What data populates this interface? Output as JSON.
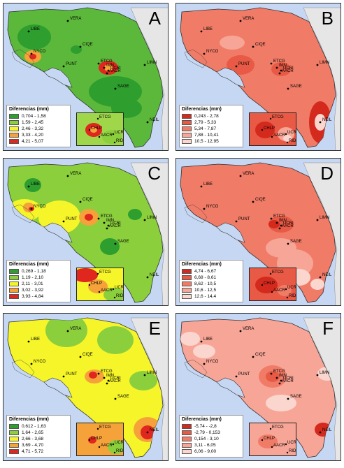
{
  "legend_title": "Diferencias (mm)",
  "stations": {
    "main": [
      "VERA",
      "LIBE",
      "CIQE",
      "NYCO",
      "PUNT",
      "ETCG",
      "UCRI",
      "IMN",
      "AACR",
      "LIMN",
      "SAGE",
      "NEIL"
    ],
    "inset": [
      "ETCG",
      "CHLP",
      "AACR",
      "UCRI",
      "RIDC"
    ]
  },
  "colors": {
    "land_base": "#f0f0f0",
    "water": "#c5d7f2"
  },
  "panels": [
    {
      "letter": "A",
      "legend": [
        {
          "label": "0,704 - 1,58",
          "color": "#2e9e2e"
        },
        {
          "label": "1,59 - 2,45",
          "color": "#8ccf3d"
        },
        {
          "label": "2,46 - 3,32",
          "color": "#f5f52a"
        },
        {
          "label": "3,33 - 4,20",
          "color": "#f5a23a"
        },
        {
          "label": "4,21 - 5,07",
          "color": "#e0261e"
        }
      ],
      "base_color": "#5cb83a",
      "inset_base": "#9fd64a"
    },
    {
      "letter": "B",
      "legend": [
        {
          "label": "0,243 - 2,78",
          "color": "#d42a1e"
        },
        {
          "label": "2,79 - 5,33",
          "color": "#e85a45"
        },
        {
          "label": "5,34 - 7,87",
          "color": "#f07b67"
        },
        {
          "label": "7,88 - 10,41",
          "color": "#f7a596"
        },
        {
          "label": "10,5 - 12,95",
          "color": "#fbd6cf"
        }
      ],
      "base_color": "#f07b67",
      "inset_base": "#e85a45"
    },
    {
      "letter": "C",
      "legend": [
        {
          "label": "0,269 - 1,18",
          "color": "#2e9e2e"
        },
        {
          "label": "1,19 - 2,10",
          "color": "#8ccf3d"
        },
        {
          "label": "2,11 - 3,01",
          "color": "#f5f52a"
        },
        {
          "label": "3,02 - 3,92",
          "color": "#f5a23a"
        },
        {
          "label": "3,93 - 4,84",
          "color": "#e0261e"
        }
      ],
      "base_color": "#8ccf3d",
      "inset_base": "#f5f52a"
    },
    {
      "letter": "D",
      "legend": [
        {
          "label": "4,74 - 6,67",
          "color": "#d42a1e"
        },
        {
          "label": "6,68 - 8,61",
          "color": "#e85a45"
        },
        {
          "label": "8,62 - 10,5",
          "color": "#f07b67"
        },
        {
          "label": "10,6 - 12,5",
          "color": "#f7a596"
        },
        {
          "label": "12,6 - 14,4",
          "color": "#fbd6cf"
        }
      ],
      "base_color": "#f07b67",
      "inset_base": "#e85a45"
    },
    {
      "letter": "E",
      "legend": [
        {
          "label": "0,612 - 1,63",
          "color": "#2e9e2e"
        },
        {
          "label": "1,64 - 2,65",
          "color": "#8ccf3d"
        },
        {
          "label": "2,66 - 3,68",
          "color": "#f5f52a"
        },
        {
          "label": "3,69 - 4,70",
          "color": "#f5a23a"
        },
        {
          "label": "4,71 - 5,72",
          "color": "#e0261e"
        }
      ],
      "base_color": "#f5f52a",
      "inset_base": "#f5a23a"
    },
    {
      "letter": "F",
      "legend": [
        {
          "label": "-5,74 - -2,8",
          "color": "#d42a1e"
        },
        {
          "label": "-2,79 - 0,153",
          "color": "#e85a45"
        },
        {
          "label": "0,154 - 3,10",
          "color": "#f07b67"
        },
        {
          "label": "3,11 - 6,05",
          "color": "#f7a596"
        },
        {
          "label": "6,06 - 9,00",
          "color": "#fbd6cf"
        }
      ],
      "base_color": "#f7a596",
      "inset_base": "#f7a596"
    }
  ]
}
